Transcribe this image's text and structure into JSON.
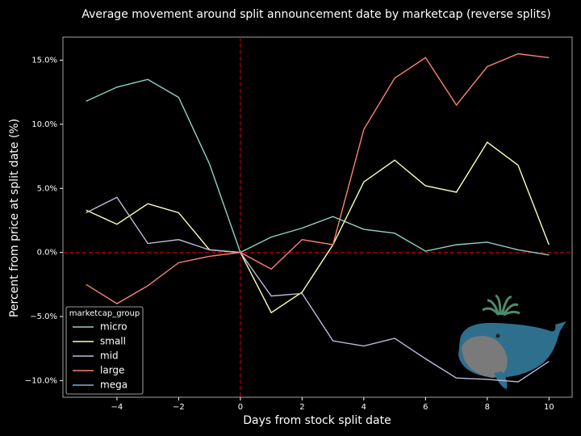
{
  "chart_data": {
    "type": "line",
    "title": "Average movement around split announcement date by marketcap (reverse splits)",
    "x_label": "Days from stock split date",
    "y_label": "Percent from price at split date (%)",
    "x": [
      -5,
      -4,
      -3,
      -2,
      -1,
      0,
      1,
      2,
      3,
      4,
      5,
      6,
      7,
      8,
      9,
      10
    ],
    "series": [
      {
        "name": "micro",
        "color": "#8dd3c7",
        "values": [
          11.8,
          12.9,
          13.5,
          12.1,
          6.9,
          0,
          1.2,
          1.9,
          2.8,
          1.8,
          1.5,
          0.1,
          0.6,
          0.8,
          0.2,
          -0.2
        ]
      },
      {
        "name": "small",
        "color": "#feffb3",
        "values": [
          3.3,
          2.2,
          3.8,
          3.1,
          0.2,
          0,
          -4.7,
          -3.1,
          0.6,
          5.5,
          7.2,
          5.2,
          4.7,
          8.6,
          6.8,
          0.6
        ]
      },
      {
        "name": "mid",
        "color": "#bfbbd9",
        "values": [
          3.1,
          4.3,
          0.7,
          1.0,
          0.2,
          0,
          -3.4,
          -3.2,
          -6.9,
          -7.3,
          -6.7,
          -8.3,
          -9.8,
          -9.9,
          -10.1,
          -8.5
        ]
      },
      {
        "name": "large",
        "color": "#fa8174",
        "values": [
          -2.5,
          -4.0,
          -2.6,
          -0.8,
          -0.3,
          0,
          -1.3,
          1.0,
          0.6,
          9.6,
          13.6,
          15.2,
          11.5,
          14.5,
          15.5,
          15.2
        ]
      },
      {
        "name": "mega",
        "color": "#81b1d2",
        "values": [
          null,
          null,
          null,
          null,
          null,
          null,
          null,
          null,
          null,
          null,
          null,
          null,
          null,
          null,
          null,
          null
        ]
      }
    ],
    "legend_title": "marketcap_group",
    "legend": "lower left",
    "xlim": [
      -5.75,
      10.75
    ],
    "ylim": [
      -11.3,
      16.8
    ],
    "xticks": [
      {
        "value": -4,
        "label": "−4"
      },
      {
        "value": -2,
        "label": "−2"
      },
      0,
      2,
      4,
      6,
      8,
      10
    ],
    "yticks": [
      {
        "value": -10,
        "label": "−10.0%"
      },
      {
        "value": -5,
        "label": "−5.0%"
      },
      {
        "value": 0,
        "label": "0.0%"
      },
      {
        "value": 5,
        "label": "5.0%"
      },
      {
        "value": 10,
        "label": "10.0%"
      },
      {
        "value": 15,
        "label": "15.0%"
      }
    ],
    "reference_lines": {
      "x": 0,
      "y": 0,
      "color": "#b00000"
    }
  }
}
